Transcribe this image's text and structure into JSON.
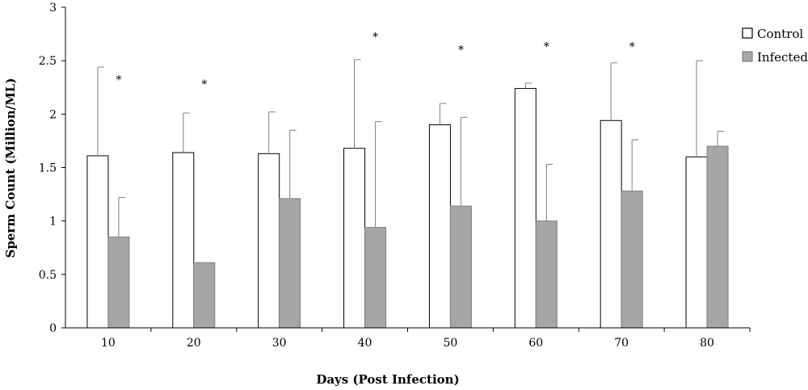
{
  "chart_data": {
    "type": "bar",
    "xlabel": "Days (Post Infection)",
    "ylabel": "Sperm Count (Million/ML)",
    "ylim": [
      0,
      3
    ],
    "yticks": [
      "0",
      "0.5",
      "1",
      "1.5",
      "2",
      "2.5",
      "3"
    ],
    "categories": [
      "10",
      "20",
      "30",
      "40",
      "50",
      "60",
      "70",
      "80"
    ],
    "series": [
      {
        "name": "Control",
        "values": [
          1.61,
          1.64,
          1.63,
          1.68,
          1.9,
          2.24,
          1.94,
          1.6
        ],
        "error": [
          0.83,
          0.37,
          0.39,
          0.83,
          0.2,
          0.05,
          0.54,
          0.9
        ],
        "fill": "#ffffff",
        "stroke": "#000000"
      },
      {
        "name": "Infected",
        "values": [
          0.85,
          0.61,
          1.21,
          0.94,
          1.14,
          1.0,
          1.28,
          1.7
        ],
        "error": [
          0.37,
          0.0,
          0.64,
          0.99,
          0.83,
          0.53,
          0.48,
          0.14
        ],
        "fill": "#a6a6a6",
        "stroke": "#808080"
      }
    ],
    "significance": [
      {
        "category": "10",
        "label": "*",
        "y": 2.33
      },
      {
        "category": "20",
        "label": "*",
        "y": 2.29
      },
      {
        "category": "40",
        "label": "*",
        "y": 2.73
      },
      {
        "category": "50",
        "label": "*",
        "y": 2.61
      },
      {
        "category": "60",
        "label": "*",
        "y": 2.64
      },
      {
        "category": "70",
        "label": "*",
        "y": 2.64
      }
    ],
    "legend": {
      "position": "top-right",
      "entries": [
        "Control",
        "Infected"
      ]
    },
    "grid": false
  }
}
